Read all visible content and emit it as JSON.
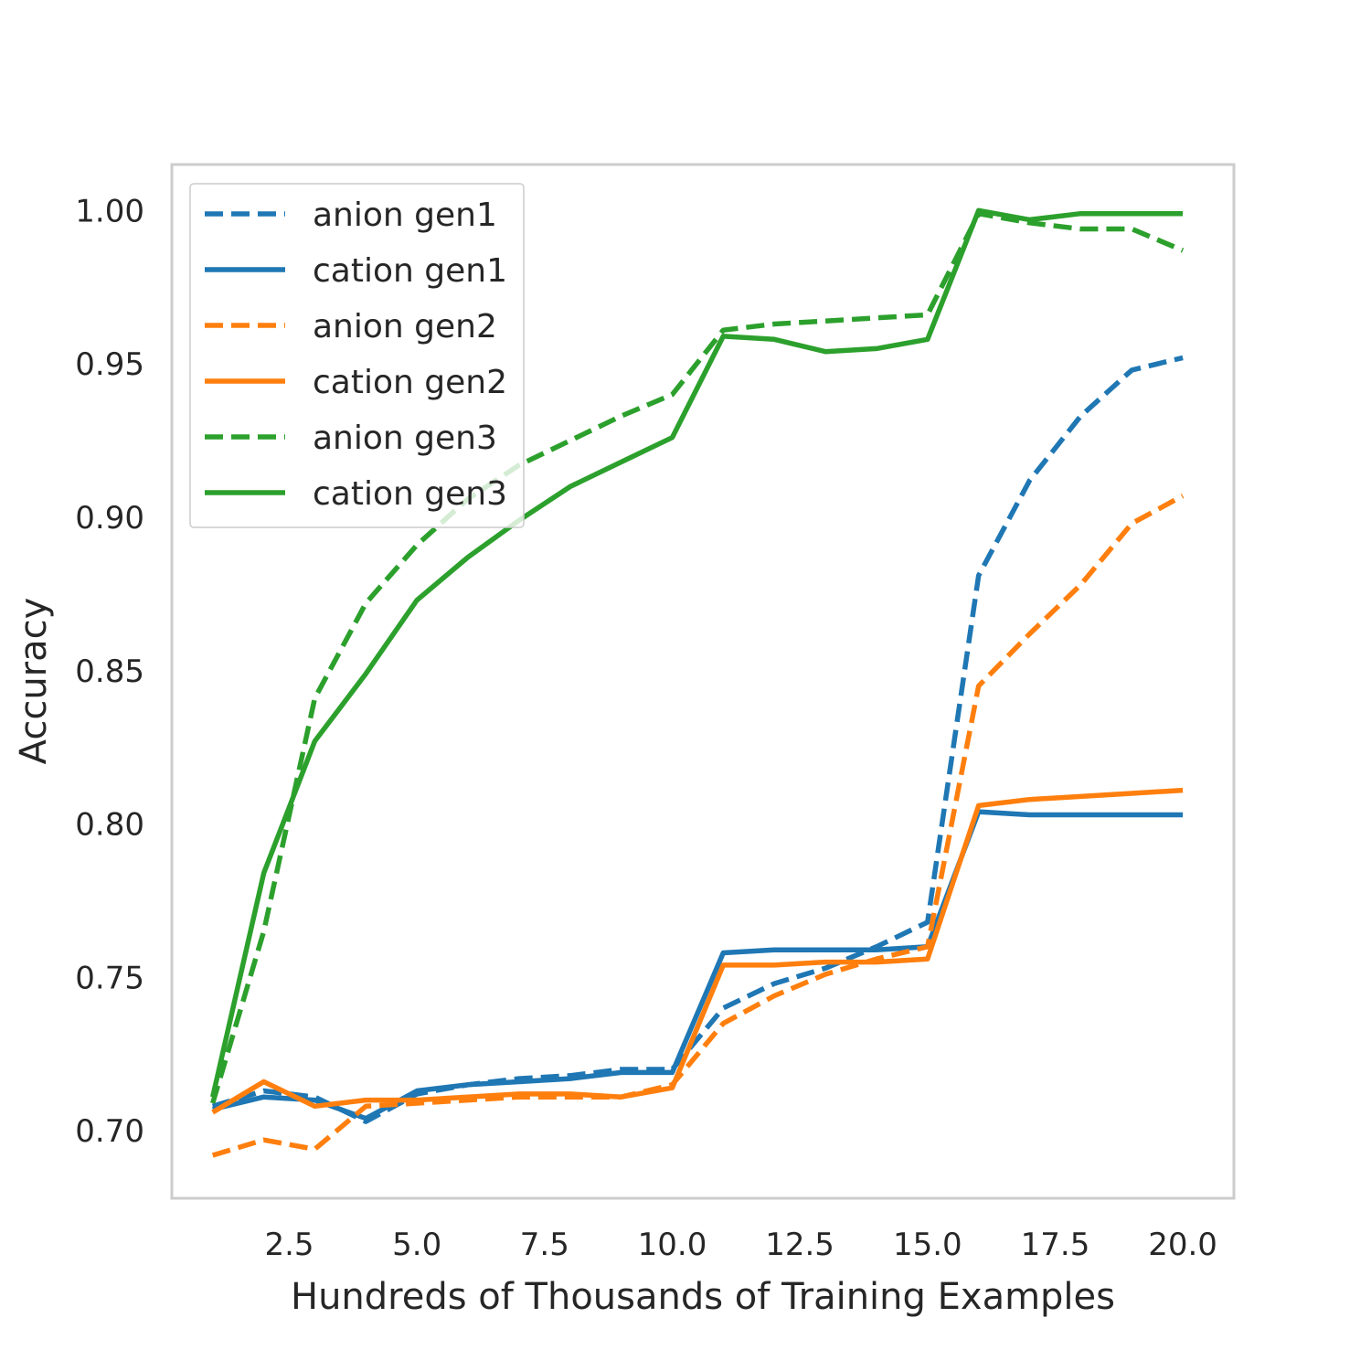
{
  "chart_data": {
    "type": "line",
    "title": "",
    "xlabel": "Hundreds of Thousands of Training Examples",
    "ylabel": "Accuracy",
    "xlim": [
      0.2,
      21.0
    ],
    "ylim": [
      0.678,
      1.015
    ],
    "xticks": [
      "2.5",
      "5.0",
      "7.5",
      "10.0",
      "12.5",
      "15.0",
      "17.5",
      "20.0"
    ],
    "yticks": [
      "0.70",
      "0.75",
      "0.80",
      "0.85",
      "0.90",
      "0.95",
      "1.00"
    ],
    "grid": false,
    "legend_position": "top-left",
    "x": [
      1,
      2,
      3,
      4,
      5,
      6,
      7,
      8,
      9,
      10,
      11,
      12,
      13,
      14,
      15,
      16,
      17,
      18,
      19,
      20
    ],
    "series": [
      {
        "name": "anion gen1",
        "color": "#1f77b4",
        "style": "dashed",
        "values": [
          0.708,
          0.713,
          0.711,
          0.703,
          0.712,
          0.715,
          0.717,
          0.718,
          0.72,
          0.72,
          0.74,
          0.748,
          0.753,
          0.76,
          0.768,
          0.881,
          0.912,
          0.933,
          0.948,
          0.952
        ]
      },
      {
        "name": "cation gen1",
        "color": "#1f77b4",
        "style": "solid",
        "values": [
          0.707,
          0.711,
          0.71,
          0.704,
          0.713,
          0.715,
          0.716,
          0.717,
          0.719,
          0.719,
          0.758,
          0.759,
          0.759,
          0.759,
          0.76,
          0.804,
          0.803,
          0.803,
          0.803,
          0.803
        ]
      },
      {
        "name": "anion gen2",
        "color": "#ff7f0e",
        "style": "dashed",
        "values": [
          0.692,
          0.697,
          0.694,
          0.708,
          0.709,
          0.71,
          0.711,
          0.711,
          0.711,
          0.715,
          0.735,
          0.744,
          0.751,
          0.756,
          0.76,
          0.845,
          0.862,
          0.878,
          0.898,
          0.907
        ]
      },
      {
        "name": "cation gen2",
        "color": "#ff7f0e",
        "style": "solid",
        "values": [
          0.706,
          0.716,
          0.708,
          0.71,
          0.71,
          0.711,
          0.712,
          0.712,
          0.711,
          0.714,
          0.754,
          0.754,
          0.755,
          0.755,
          0.756,
          0.806,
          0.808,
          0.809,
          0.81,
          0.811
        ]
      },
      {
        "name": "anion gen3",
        "color": "#2ca02c",
        "style": "dashed",
        "values": [
          0.709,
          0.765,
          0.841,
          0.872,
          0.891,
          0.906,
          0.917,
          0.925,
          0.933,
          0.94,
          0.961,
          0.963,
          0.964,
          0.965,
          0.966,
          0.999,
          0.996,
          0.994,
          0.994,
          0.987
        ]
      },
      {
        "name": "cation gen3",
        "color": "#2ca02c",
        "style": "solid",
        "values": [
          0.711,
          0.784,
          0.827,
          0.849,
          0.873,
          0.887,
          0.899,
          0.91,
          0.918,
          0.926,
          0.959,
          0.958,
          0.954,
          0.955,
          0.958,
          1.0,
          0.997,
          0.999,
          0.999,
          0.999
        ]
      }
    ]
  }
}
